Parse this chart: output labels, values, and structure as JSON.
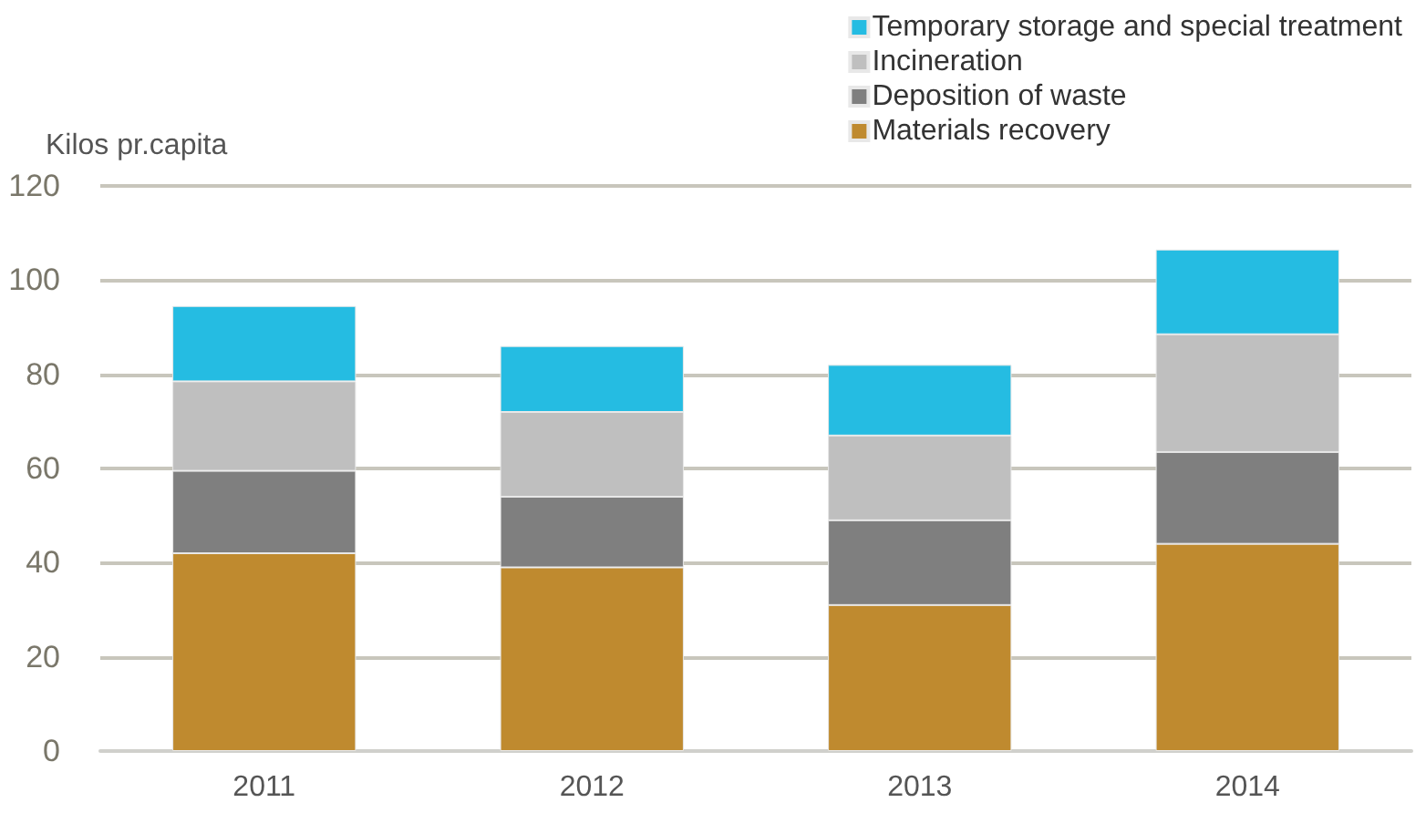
{
  "chart_data": {
    "type": "bar",
    "stacked": true,
    "ylabel": "Kilos pr.capita",
    "categories": [
      "2011",
      "2012",
      "2013",
      "2014"
    ],
    "series": [
      {
        "name": "Materials recovery",
        "color": "#bf8a2f",
        "values": [
          42,
          39,
          31,
          44
        ]
      },
      {
        "name": "Deposition of waste",
        "color": "#7f7f7f",
        "values": [
          17.5,
          15,
          18,
          19.5
        ]
      },
      {
        "name": "Incineration",
        "color": "#bfbfbf",
        "values": [
          19,
          18,
          18,
          25
        ]
      },
      {
        "name": "Temporary storage and special treatment",
        "color": "#25bce2",
        "values": [
          16,
          14,
          15,
          18
        ]
      }
    ],
    "ylim": [
      0,
      120
    ],
    "yticks": [
      0,
      20,
      40,
      60,
      80,
      100,
      120
    ],
    "grid": "y",
    "legend": "top right"
  }
}
